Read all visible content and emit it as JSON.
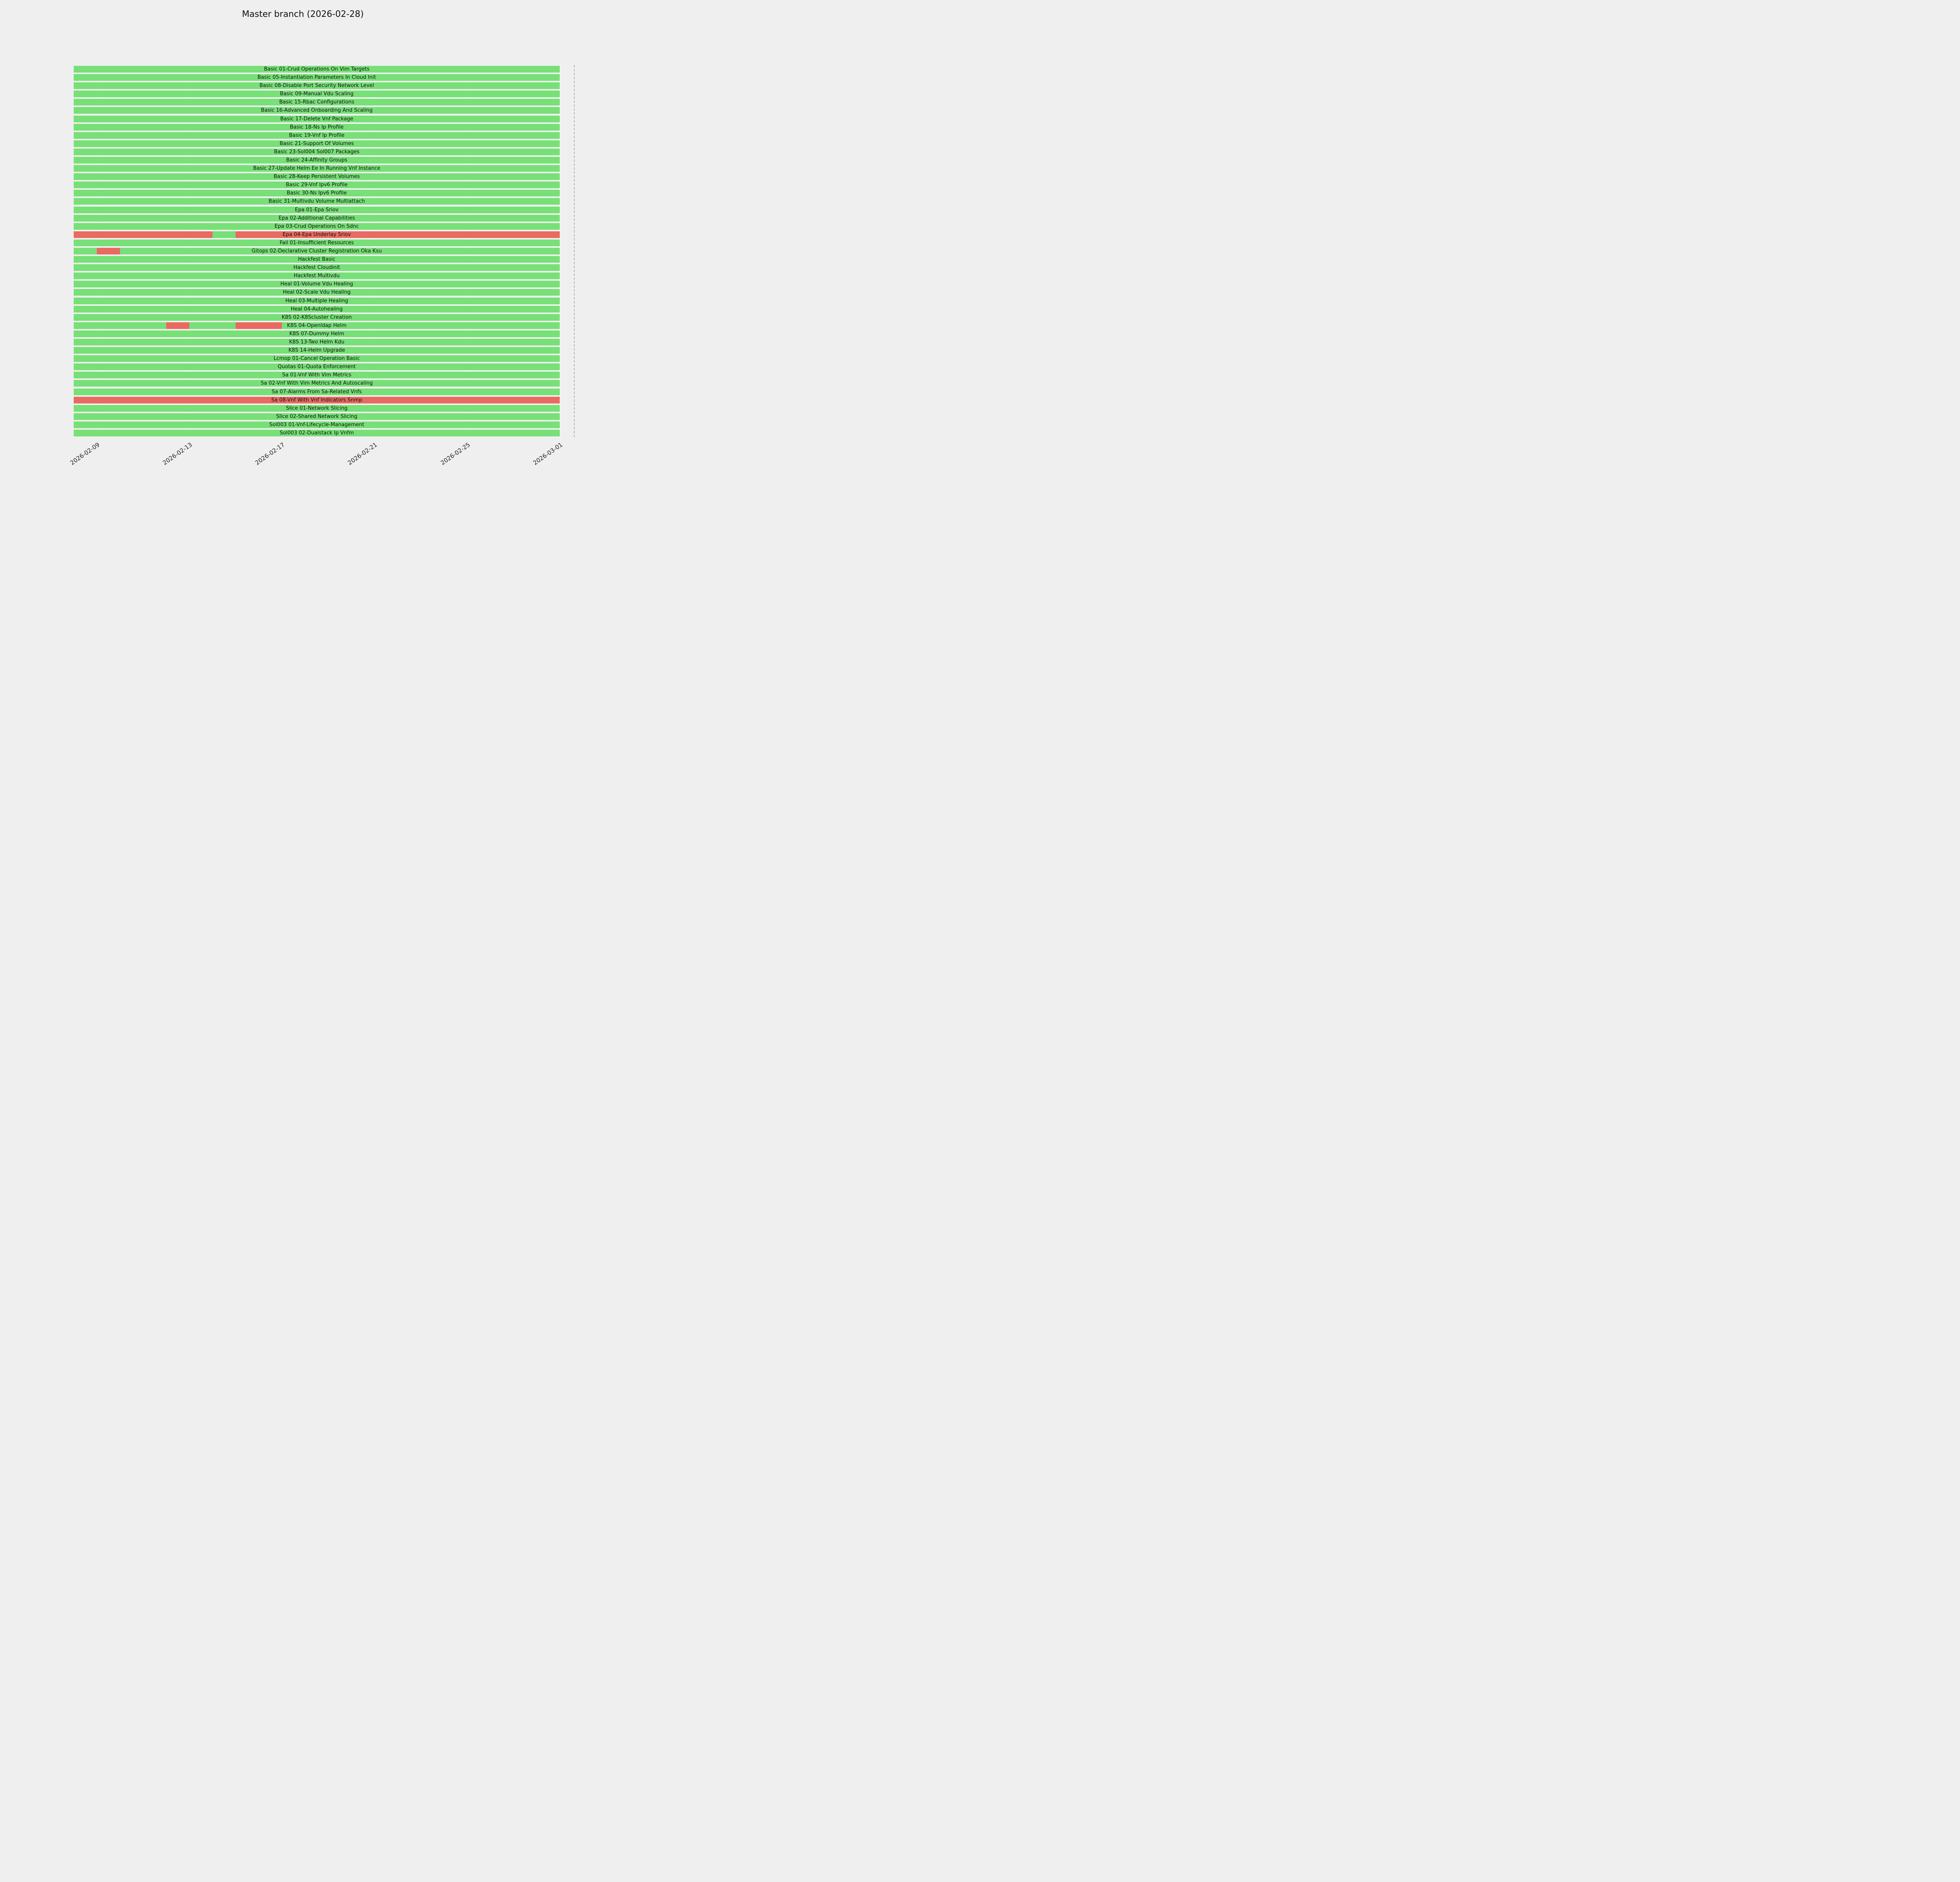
{
  "chart_data": {
    "type": "gantt",
    "title": "Master branch (2026-02-28)",
    "x_start": "2026-02-08",
    "x_end": "2026-03-01",
    "x_ticks": [
      "2026-02-09",
      "2026-02-13",
      "2026-02-17",
      "2026-02-21",
      "2026-02-25",
      "2026-03-01"
    ],
    "grid": true,
    "legend": "none",
    "colors": {
      "pass": "#77e077",
      "fail": "#e96a61",
      "background": "#efefef",
      "grid": "#ffffff",
      "now_line": "#b3b3b3"
    },
    "rows": [
      {
        "name": "Basic 01-Crud Operations On Vim Targets",
        "segments": [
          {
            "start": "2026-02-08",
            "end": "2026-03-01",
            "status": "pass"
          }
        ]
      },
      {
        "name": "Basic 05-Instantiation Parameters In Cloud Init",
        "segments": [
          {
            "start": "2026-02-08",
            "end": "2026-03-01",
            "status": "pass"
          }
        ]
      },
      {
        "name": "Basic 08-Disable Port Security Network Level",
        "segments": [
          {
            "start": "2026-02-08",
            "end": "2026-03-01",
            "status": "pass"
          }
        ]
      },
      {
        "name": "Basic 09-Manual Vdu Scaling",
        "segments": [
          {
            "start": "2026-02-08",
            "end": "2026-03-01",
            "status": "pass"
          }
        ]
      },
      {
        "name": "Basic 15-Rbac Configurations",
        "segments": [
          {
            "start": "2026-02-08",
            "end": "2026-03-01",
            "status": "pass"
          }
        ]
      },
      {
        "name": "Basic 16-Advanced Onboarding And Scaling",
        "segments": [
          {
            "start": "2026-02-08",
            "end": "2026-03-01",
            "status": "pass"
          }
        ]
      },
      {
        "name": "Basic 17-Delete Vnf Package",
        "segments": [
          {
            "start": "2026-02-08",
            "end": "2026-03-01",
            "status": "pass"
          }
        ]
      },
      {
        "name": "Basic 18-Ns Ip Profile",
        "segments": [
          {
            "start": "2026-02-08",
            "end": "2026-03-01",
            "status": "pass"
          }
        ]
      },
      {
        "name": "Basic 19-Vnf Ip Profile",
        "segments": [
          {
            "start": "2026-02-08",
            "end": "2026-03-01",
            "status": "pass"
          }
        ]
      },
      {
        "name": "Basic 21-Support Of Volumes",
        "segments": [
          {
            "start": "2026-02-08",
            "end": "2026-03-01",
            "status": "pass"
          }
        ]
      },
      {
        "name": "Basic 23-Sol004 Sol007 Packages",
        "segments": [
          {
            "start": "2026-02-08",
            "end": "2026-03-01",
            "status": "pass"
          }
        ]
      },
      {
        "name": "Basic 24-Affinity Groups",
        "segments": [
          {
            "start": "2026-02-08",
            "end": "2026-03-01",
            "status": "pass"
          }
        ]
      },
      {
        "name": "Basic 27-Update Helm Ee In Running Vnf Instance",
        "segments": [
          {
            "start": "2026-02-08",
            "end": "2026-03-01",
            "status": "pass"
          }
        ]
      },
      {
        "name": "Basic 28-Keep Persistent Volumes",
        "segments": [
          {
            "start": "2026-02-08",
            "end": "2026-03-01",
            "status": "pass"
          }
        ]
      },
      {
        "name": "Basic 29-Vnf Ipv6 Profile",
        "segments": [
          {
            "start": "2026-02-08",
            "end": "2026-03-01",
            "status": "pass"
          }
        ]
      },
      {
        "name": "Basic 30-Ns Ipv6 Profile",
        "segments": [
          {
            "start": "2026-02-08",
            "end": "2026-03-01",
            "status": "pass"
          }
        ]
      },
      {
        "name": "Basic 31-Multivdu Volume Multiattach",
        "segments": [
          {
            "start": "2026-02-08",
            "end": "2026-03-01",
            "status": "pass"
          }
        ]
      },
      {
        "name": "Epa 01-Epa Sriov",
        "segments": [
          {
            "start": "2026-02-08",
            "end": "2026-03-01",
            "status": "pass"
          }
        ]
      },
      {
        "name": "Epa 02-Additional Capabilities",
        "segments": [
          {
            "start": "2026-02-08",
            "end": "2026-03-01",
            "status": "pass"
          }
        ]
      },
      {
        "name": "Epa 03-Crud Operations On Sdnc",
        "segments": [
          {
            "start": "2026-02-08",
            "end": "2026-03-01",
            "status": "pass"
          }
        ]
      },
      {
        "name": "Epa 04-Epa Underlay Sriov",
        "segments": [
          {
            "start": "2026-02-08",
            "end": "2026-02-14",
            "status": "fail"
          },
          {
            "start": "2026-02-14",
            "end": "2026-02-15",
            "status": "pass"
          },
          {
            "start": "2026-02-15",
            "end": "2026-03-01",
            "status": "fail"
          }
        ]
      },
      {
        "name": "Fail 01-Insufficient Resources",
        "segments": [
          {
            "start": "2026-02-08",
            "end": "2026-03-01",
            "status": "pass"
          }
        ]
      },
      {
        "name": "Gitops 02-Declarative Cluster Registration Oka Ksu",
        "segments": [
          {
            "start": "2026-02-08",
            "end": "2026-02-09",
            "status": "pass"
          },
          {
            "start": "2026-02-09",
            "end": "2026-02-10",
            "status": "fail"
          },
          {
            "start": "2026-02-10",
            "end": "2026-03-01",
            "status": "pass"
          }
        ]
      },
      {
        "name": "Hackfest Basic",
        "segments": [
          {
            "start": "2026-02-08",
            "end": "2026-03-01",
            "status": "pass"
          }
        ]
      },
      {
        "name": "Hackfest Cloudinit",
        "segments": [
          {
            "start": "2026-02-08",
            "end": "2026-03-01",
            "status": "pass"
          }
        ]
      },
      {
        "name": "Hackfest Multivdu",
        "segments": [
          {
            "start": "2026-02-08",
            "end": "2026-03-01",
            "status": "pass"
          }
        ]
      },
      {
        "name": "Heal 01-Volume Vdu Healing",
        "segments": [
          {
            "start": "2026-02-08",
            "end": "2026-03-01",
            "status": "pass"
          }
        ]
      },
      {
        "name": "Heal 02-Scale Vdu Healing",
        "segments": [
          {
            "start": "2026-02-08",
            "end": "2026-03-01",
            "status": "pass"
          }
        ]
      },
      {
        "name": "Heal 03-Multiple Healing",
        "segments": [
          {
            "start": "2026-02-08",
            "end": "2026-03-01",
            "status": "pass"
          }
        ]
      },
      {
        "name": "Heal 04-Autohealing",
        "segments": [
          {
            "start": "2026-02-08",
            "end": "2026-03-01",
            "status": "pass"
          }
        ]
      },
      {
        "name": "K8S 02-K8Scluster Creation",
        "segments": [
          {
            "start": "2026-02-08",
            "end": "2026-03-01",
            "status": "pass"
          }
        ]
      },
      {
        "name": "K8S 04-Openldap Helm",
        "segments": [
          {
            "start": "2026-02-08",
            "end": "2026-02-12",
            "status": "pass"
          },
          {
            "start": "2026-02-12",
            "end": "2026-02-13",
            "status": "fail"
          },
          {
            "start": "2026-02-13",
            "end": "2026-02-15",
            "status": "pass"
          },
          {
            "start": "2026-02-15",
            "end": "2026-02-17",
            "status": "fail"
          },
          {
            "start": "2026-02-17",
            "end": "2026-03-01",
            "status": "pass"
          }
        ]
      },
      {
        "name": "K8S 07-Dummy Helm",
        "segments": [
          {
            "start": "2026-02-08",
            "end": "2026-03-01",
            "status": "pass"
          }
        ]
      },
      {
        "name": "K8S 13-Two Helm Kdu",
        "segments": [
          {
            "start": "2026-02-08",
            "end": "2026-03-01",
            "status": "pass"
          }
        ]
      },
      {
        "name": "K8S 14-Helm Upgrade",
        "segments": [
          {
            "start": "2026-02-08",
            "end": "2026-03-01",
            "status": "pass"
          }
        ]
      },
      {
        "name": "Lcmop 01-Cancel Operation Basic",
        "segments": [
          {
            "start": "2026-02-08",
            "end": "2026-03-01",
            "status": "pass"
          }
        ]
      },
      {
        "name": "Quotas 01-Quota Enforcement",
        "segments": [
          {
            "start": "2026-02-08",
            "end": "2026-03-01",
            "status": "pass"
          }
        ]
      },
      {
        "name": "Sa 01-Vnf With Vim Metrics",
        "segments": [
          {
            "start": "2026-02-08",
            "end": "2026-03-01",
            "status": "pass"
          }
        ]
      },
      {
        "name": "Sa 02-Vnf With Vim Metrics And Autoscaling",
        "segments": [
          {
            "start": "2026-02-08",
            "end": "2026-03-01",
            "status": "pass"
          }
        ]
      },
      {
        "name": "Sa 07-Alarms From Sa-Related Vnfs",
        "segments": [
          {
            "start": "2026-02-08",
            "end": "2026-03-01",
            "status": "pass"
          }
        ]
      },
      {
        "name": "Sa 08-Vnf With Vnf Indicators Snmp",
        "segments": [
          {
            "start": "2026-02-08",
            "end": "2026-03-01",
            "status": "fail"
          }
        ]
      },
      {
        "name": "Slice 01-Network Slicing",
        "segments": [
          {
            "start": "2026-02-08",
            "end": "2026-03-01",
            "status": "pass"
          }
        ]
      },
      {
        "name": "Slice 02-Shared Network Slicing",
        "segments": [
          {
            "start": "2026-02-08",
            "end": "2026-03-01",
            "status": "pass"
          }
        ]
      },
      {
        "name": "Sol003 01-Vnf-Lifecycle-Management",
        "segments": [
          {
            "start": "2026-02-08",
            "end": "2026-03-01",
            "status": "pass"
          }
        ]
      },
      {
        "name": "Sol003 02-Dualstack Ip Vnfm",
        "segments": [
          {
            "start": "2026-02-08",
            "end": "2026-03-01",
            "status": "pass"
          }
        ]
      }
    ]
  }
}
